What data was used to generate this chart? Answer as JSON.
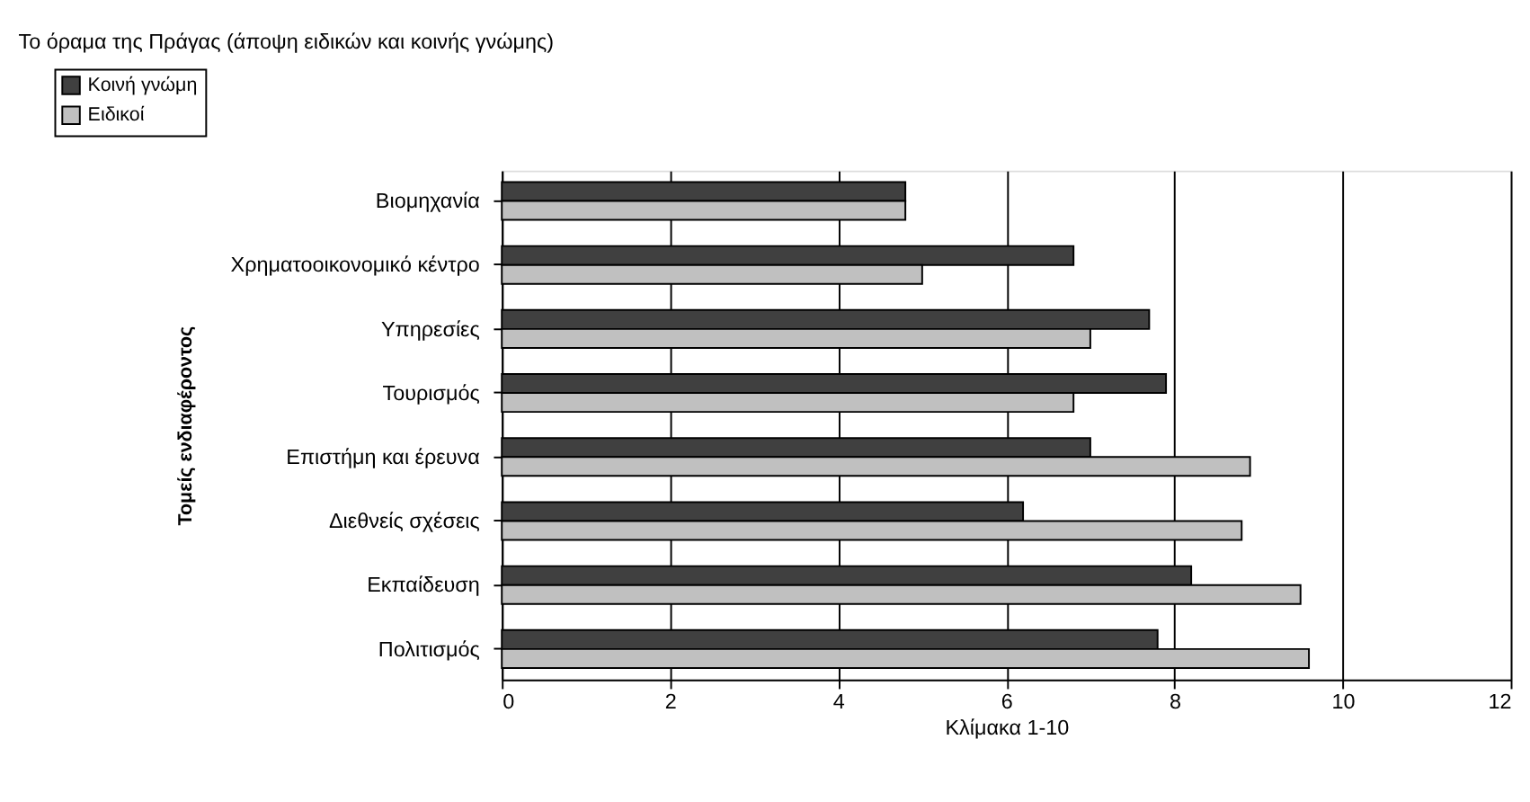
{
  "chart_data": {
    "type": "bar",
    "orientation": "horizontal",
    "title": "Το όραμα της Πράγας (άποψη ειδικών και κοινής γνώμης)",
    "xlabel": "Κλίμακα 1-10",
    "ylabel": "Τομείς ενδιαφέροντος",
    "categories": [
      "Βιομηχανία",
      "Χρηματοοικονομικό κέντρο",
      "Υπηρεσίες",
      "Τουρισμός",
      "Επιστήμη και έρευνα",
      "Διεθνείς σχέσεις",
      "Εκπαίδευση",
      "Πολιτισμός"
    ],
    "series": [
      {
        "name": "Κοινή γνώμη",
        "color": "#404040",
        "values": [
          4.8,
          6.8,
          7.7,
          7.9,
          7.0,
          6.2,
          8.2,
          7.8
        ]
      },
      {
        "name": "Ειδικοί",
        "color": "#c0c0c0",
        "values": [
          4.8,
          5.0,
          7.0,
          6.8,
          8.9,
          8.8,
          9.5,
          9.6
        ]
      }
    ],
    "xlim": [
      0,
      12
    ],
    "xticks": [
      0,
      2,
      4,
      6,
      8,
      10,
      12
    ],
    "grid": "x",
    "legend": "top left"
  }
}
